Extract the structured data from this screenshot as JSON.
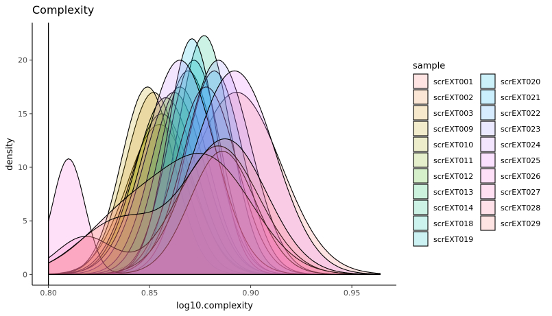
{
  "chart_data": {
    "type": "area",
    "title": "Complexity",
    "xlabel": "log10.complexity",
    "ylabel": "density",
    "xlim": [
      0.792,
      0.972
    ],
    "ylim": [
      -1.0,
      23.5
    ],
    "x_ticks": [
      0.8,
      0.85,
      0.9,
      0.95
    ],
    "x_tick_labels": [
      "0.80",
      "0.85",
      "0.90",
      "0.95"
    ],
    "y_ticks": [
      0,
      5,
      10,
      15,
      20
    ],
    "y_tick_labels": [
      "0",
      "5",
      "10",
      "15",
      "20"
    ],
    "grid": false,
    "legend_position": "right",
    "legend_title": "sample",
    "fill_opacity": 0.2,
    "series": [
      {
        "name": "scrEXT001",
        "color": "#F8766D",
        "components": [
          [
            0.893,
            0.022,
            17.0
          ]
        ]
      },
      {
        "name": "scrEXT002",
        "color": "#EA8331",
        "components": [
          [
            0.855,
            0.016,
            14.0
          ]
        ]
      },
      {
        "name": "scrEXT003",
        "color": "#D89000",
        "components": [
          [
            0.852,
            0.014,
            17.0
          ]
        ]
      },
      {
        "name": "scrEXT009",
        "color": "#C09B00",
        "components": [
          [
            0.849,
            0.013,
            17.5
          ]
        ]
      },
      {
        "name": "scrEXT010",
        "color": "#A3A500",
        "components": [
          [
            0.856,
            0.015,
            15.0
          ]
        ]
      },
      {
        "name": "scrEXT011",
        "color": "#7CAE00",
        "components": [
          [
            0.858,
            0.015,
            16.5
          ]
        ]
      },
      {
        "name": "scrEXT012",
        "color": "#39B600",
        "components": [
          [
            0.862,
            0.015,
            17.0
          ]
        ]
      },
      {
        "name": "scrEXT013",
        "color": "#00BB4E",
        "components": [
          [
            0.865,
            0.014,
            17.5
          ]
        ]
      },
      {
        "name": "scrEXT014",
        "color": "#00BF7D",
        "components": [
          [
            0.877,
            0.013,
            22.3
          ]
        ]
      },
      {
        "name": "scrEXT018",
        "color": "#00C1A3",
        "components": [
          [
            0.869,
            0.014,
            19.0
          ]
        ]
      },
      {
        "name": "scrEXT019",
        "color": "#00BFC4",
        "components": [
          [
            0.872,
            0.013,
            20.0
          ]
        ]
      },
      {
        "name": "scrEXT020",
        "color": "#00BAE0",
        "components": [
          [
            0.871,
            0.012,
            22.0
          ]
        ]
      },
      {
        "name": "scrEXT021",
        "color": "#00B0F6",
        "components": [
          [
            0.882,
            0.014,
            19.0
          ]
        ]
      },
      {
        "name": "scrEXT022",
        "color": "#35A2FF",
        "components": [
          [
            0.878,
            0.015,
            17.5
          ]
        ]
      },
      {
        "name": "scrEXT023",
        "color": "#9590FF",
        "components": [
          [
            0.884,
            0.016,
            20.0
          ]
        ]
      },
      {
        "name": "scrEXT024",
        "color": "#C77CFF",
        "components": [
          [
            0.865,
            0.017,
            20.0
          ]
        ]
      },
      {
        "name": "scrEXT025",
        "color": "#E76BF3",
        "components": [
          [
            0.892,
            0.02,
            19.0
          ]
        ]
      },
      {
        "name": "scrEXT026",
        "color": "#FA62DB",
        "components": [
          [
            0.81,
            0.008,
            10.8
          ],
          [
            0.886,
            0.016,
            11.5
          ]
        ]
      },
      {
        "name": "scrEXT027",
        "color": "#FF62BC",
        "components": [
          [
            0.818,
            0.014,
            3.5
          ],
          [
            0.884,
            0.02,
            12.0
          ]
        ]
      },
      {
        "name": "scrEXT028",
        "color": "#FF6C91",
        "components": [
          [
            0.88,
            0.022,
            10.0
          ],
          [
            0.84,
            0.022,
            5.5
          ]
        ]
      },
      {
        "name": "scrEXT029",
        "color": "#F8766D",
        "components": [
          [
            0.888,
            0.02,
            12.5
          ],
          [
            0.835,
            0.02,
            5.0
          ]
        ]
      }
    ]
  }
}
